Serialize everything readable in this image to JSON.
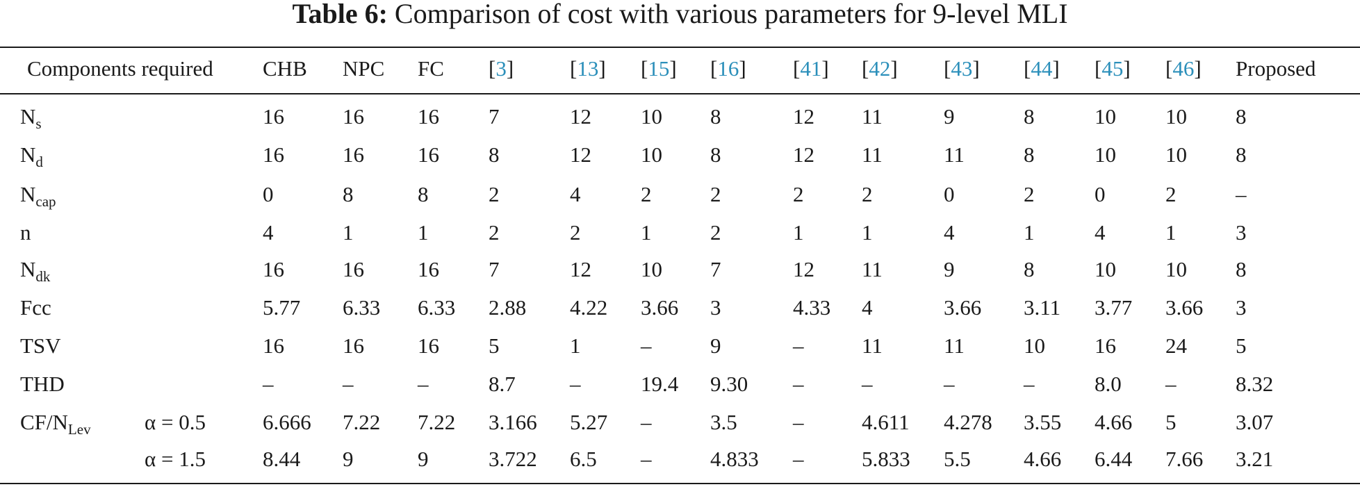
{
  "caption": {
    "label": "Table 6:",
    "text": "Comparison of cost with various parameters for 9-level MLI"
  },
  "header": {
    "components": "Components required",
    "columns": [
      {
        "text": "CHB",
        "is_ref": false
      },
      {
        "text": "NPC",
        "is_ref": false
      },
      {
        "text": "FC",
        "is_ref": false
      },
      {
        "text": "3",
        "is_ref": true
      },
      {
        "text": "13",
        "is_ref": true
      },
      {
        "text": "15",
        "is_ref": true
      },
      {
        "text": "16",
        "is_ref": true
      },
      {
        "text": "41",
        "is_ref": true
      },
      {
        "text": "42",
        "is_ref": true
      },
      {
        "text": "43",
        "is_ref": true
      },
      {
        "text": "44",
        "is_ref": true
      },
      {
        "text": "45",
        "is_ref": true
      },
      {
        "text": "46",
        "is_ref": true
      },
      {
        "text": "Proposed",
        "is_ref": false
      }
    ]
  },
  "rows": [
    {
      "label": "N",
      "sub": "s",
      "values": [
        "16",
        "16",
        "16",
        "7",
        "12",
        "10",
        "8",
        "12",
        "11",
        "9",
        "8",
        "10",
        "10",
        "8"
      ]
    },
    {
      "label": "N",
      "sub": "d",
      "values": [
        "16",
        "16",
        "16",
        "8",
        "12",
        "10",
        "8",
        "12",
        "11",
        "11",
        "8",
        "10",
        "10",
        "8"
      ]
    },
    {
      "label": "N",
      "sub": "cap",
      "values": [
        "0",
        "8",
        "8",
        "2",
        "4",
        "2",
        "2",
        "2",
        "2",
        "0",
        "2",
        "0",
        "2",
        "–"
      ]
    },
    {
      "label": "n",
      "sub": "",
      "values": [
        "4",
        "1",
        "1",
        "2",
        "2",
        "1",
        "2",
        "1",
        "1",
        "4",
        "1",
        "4",
        "1",
        "3"
      ]
    },
    {
      "label": "N",
      "sub": "dk",
      "values": [
        "16",
        "16",
        "16",
        "7",
        "12",
        "10",
        "7",
        "12",
        "11",
        "9",
        "8",
        "10",
        "10",
        "8"
      ]
    },
    {
      "label": "Fcc",
      "sub": "",
      "values": [
        "5.77",
        "6.33",
        "6.33",
        "2.88",
        "4.22",
        "3.66",
        "3",
        "4.33",
        "4",
        "3.66",
        "3.11",
        "3.77",
        "3.66",
        "3"
      ]
    },
    {
      "label": "TSV",
      "sub": "",
      "values": [
        "16",
        "16",
        "16",
        "5",
        "1",
        "–",
        "9",
        "–",
        "11",
        "11",
        "10",
        "16",
        "24",
        "5"
      ]
    },
    {
      "label": "THD",
      "sub": "",
      "values": [
        "–",
        "–",
        "–",
        "8.7",
        "–",
        "19.4",
        "9.30",
        "–",
        "–",
        "–",
        "–",
        "8.0",
        "–",
        "8.32"
      ]
    },
    {
      "label": "CF/N",
      "sub": "Lev",
      "alpha": "α = 0.5",
      "values": [
        "6.666",
        "7.22",
        "7.22",
        "3.166",
        "5.27",
        "–",
        "3.5",
        "–",
        "4.611",
        "4.278",
        "3.55",
        "4.66",
        "5",
        "3.07"
      ]
    },
    {
      "label": "",
      "sub": "",
      "alpha": "α = 1.5",
      "values": [
        "8.44",
        "9",
        "9",
        "3.722",
        "6.5",
        "–",
        "4.833",
        "–",
        "5.833",
        "5.5",
        "4.66",
        "6.44",
        "7.66",
        "3.21"
      ]
    }
  ]
}
